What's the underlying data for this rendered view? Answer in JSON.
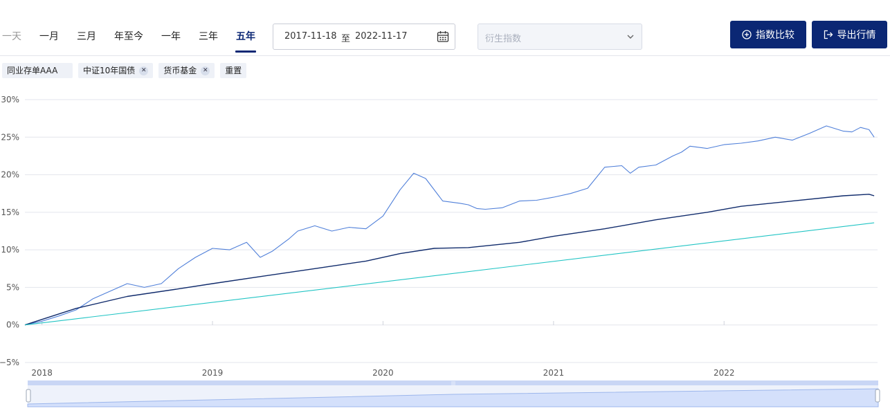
{
  "header": {
    "tabs": [
      {
        "label": "一天",
        "active": false
      },
      {
        "label": "一月",
        "active": false
      },
      {
        "label": "三月",
        "active": false
      },
      {
        "label": "年至今",
        "active": false
      },
      {
        "label": "一年",
        "active": false
      },
      {
        "label": "三年",
        "active": false
      },
      {
        "label": "五年",
        "active": true
      }
    ],
    "date_start": "2017-11-18",
    "date_sep": "至",
    "date_end": "2022-11-17",
    "derivative_placeholder": "衍生指数",
    "compare_button": "指数比较",
    "export_button": "导出行情"
  },
  "tags": [
    {
      "label": "同业存单AAA",
      "removable": false
    },
    {
      "label": "中证10年国债",
      "removable": true
    },
    {
      "label": "货币基金",
      "removable": true
    }
  ],
  "reset_label": "重置",
  "colors": {
    "brand": "#0b2774",
    "series_main": "#0f2a6b",
    "series_bond": "#4f7fd9",
    "series_mmf": "#20c4c4",
    "zoom_fill": "#d4e0fb"
  },
  "chart_data": {
    "type": "line",
    "ylim": [
      -5,
      30
    ],
    "yticks": [
      -5,
      0,
      5,
      10,
      15,
      20,
      25,
      30
    ],
    "ytick_labels": [
      "−5%",
      "0%",
      "5%",
      "10%",
      "15%",
      "20%",
      "25%",
      "30%"
    ],
    "xticks": [
      "2018",
      "2019",
      "2020",
      "2021",
      "2022"
    ],
    "xtick_positions": [
      2018.0,
      2019.0,
      2020.0,
      2021.0,
      2022.0
    ],
    "xlim": [
      2017.9,
      2022.9
    ],
    "grid": true,
    "series": [
      {
        "key": "series_bond",
        "x": [
          2017.9,
          2018.0,
          2018.1,
          2018.2,
          2018.3,
          2018.4,
          2018.5,
          2018.6,
          2018.7,
          2018.8,
          2018.9,
          2019.0,
          2019.1,
          2019.2,
          2019.28,
          2019.35,
          2019.45,
          2019.5,
          2019.6,
          2019.7,
          2019.8,
          2019.9,
          2020.0,
          2020.1,
          2020.18,
          2020.25,
          2020.35,
          2020.45,
          2020.5,
          2020.55,
          2020.6,
          2020.7,
          2020.8,
          2020.9,
          2021.0,
          2021.1,
          2021.2,
          2021.3,
          2021.4,
          2021.45,
          2021.5,
          2021.6,
          2021.7,
          2021.75,
          2021.8,
          2021.9,
          2022.0,
          2022.1,
          2022.2,
          2022.3,
          2022.4,
          2022.5,
          2022.6,
          2022.7,
          2022.75,
          2022.8,
          2022.85,
          2022.88
        ],
        "values": [
          0,
          0.5,
          1.2,
          2.0,
          3.5,
          4.5,
          5.5,
          5.0,
          5.5,
          7.5,
          9.0,
          10.2,
          10.0,
          11.0,
          9.0,
          9.8,
          11.5,
          12.5,
          13.2,
          12.5,
          13.0,
          12.8,
          14.5,
          18.0,
          20.2,
          19.5,
          16.5,
          16.2,
          16.0,
          15.5,
          15.4,
          15.6,
          16.5,
          16.6,
          17.0,
          17.5,
          18.2,
          21.0,
          21.2,
          20.2,
          21.0,
          21.3,
          22.5,
          23.0,
          23.8,
          23.5,
          24.0,
          24.2,
          24.5,
          25.0,
          24.6,
          25.5,
          26.5,
          25.8,
          25.7,
          26.3,
          26.0,
          25.0
        ]
      },
      {
        "key": "series_main",
        "x": [
          2017.9,
          2018.2,
          2018.5,
          2018.8,
          2019.0,
          2019.3,
          2019.6,
          2019.9,
          2020.1,
          2020.3,
          2020.5,
          2020.8,
          2021.0,
          2021.3,
          2021.6,
          2021.9,
          2022.1,
          2022.4,
          2022.7,
          2022.85,
          2022.88
        ],
        "values": [
          0,
          2.2,
          3.8,
          4.8,
          5.5,
          6.5,
          7.5,
          8.5,
          9.5,
          10.2,
          10.3,
          11.0,
          11.8,
          12.8,
          14.0,
          15.0,
          15.8,
          16.5,
          17.2,
          17.4,
          17.2
        ]
      },
      {
        "key": "series_mmf",
        "x": [
          2017.9,
          2022.88
        ],
        "values": [
          0,
          13.6
        ]
      }
    ]
  }
}
